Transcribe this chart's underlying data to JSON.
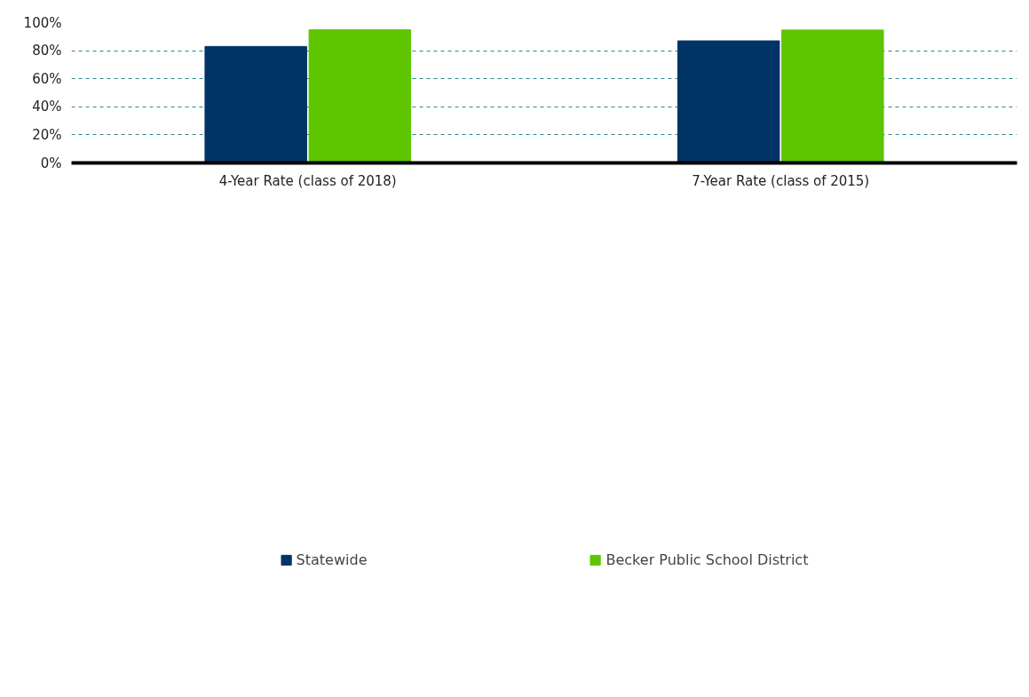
{
  "chart_data": {
    "type": "bar",
    "categories": [
      "4-Year Rate (class of 2018)",
      "7-Year Rate (class of 2015)"
    ],
    "series": [
      {
        "name": "Statewide",
        "color": "#003366",
        "values": [
          83,
          87
        ]
      },
      {
        "name": "Becker Public School District",
        "color": "#5ec500",
        "values": [
          95,
          94.7
        ]
      }
    ],
    "ylim": [
      0,
      100
    ],
    "yticks": [
      {
        "value": 0,
        "label": "0%"
      },
      {
        "value": 20,
        "label": "20%"
      },
      {
        "value": 40,
        "label": "40%"
      },
      {
        "value": 60,
        "label": "60%"
      },
      {
        "value": 80,
        "label": "80%"
      },
      {
        "value": 100,
        "label": "100%"
      }
    ],
    "grid": "y",
    "legend": "bottom"
  }
}
